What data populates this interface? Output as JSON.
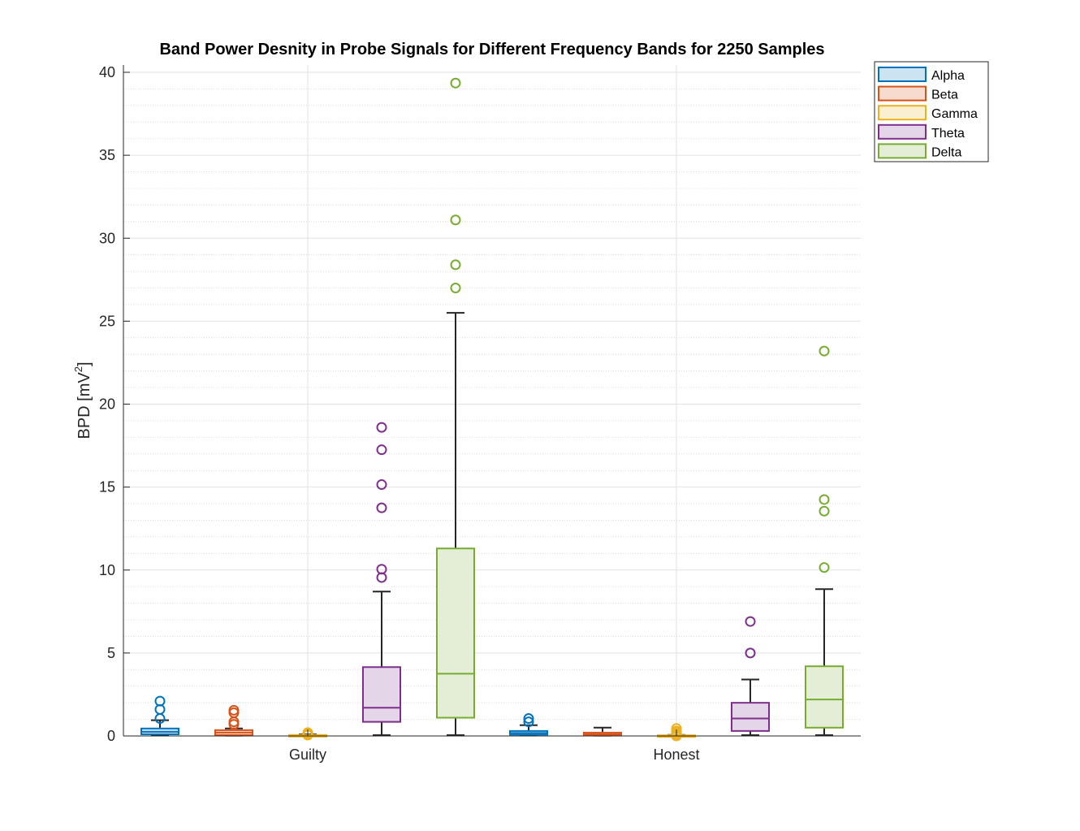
{
  "chart_data": {
    "type": "boxplot",
    "title": "Band Power Desnity in Probe Signals for Different Frequency Bands for 2250 Samples",
    "ylabel_main": "BPD [mV",
    "ylabel_sup": "2",
    "ylabel_close": "]",
    "xlabel": "",
    "ylim": [
      0,
      40
    ],
    "yticks": [
      "0",
      "5",
      "10",
      "15",
      "20",
      "25",
      "30",
      "35",
      "40"
    ],
    "minor_grid": true,
    "major_grid": true,
    "legend_position": "outside-top-right",
    "categories": [
      "Guilty",
      "Honest"
    ],
    "series": [
      {
        "name": "Alpha",
        "color": "#0072BD",
        "fill": "#cce3f2",
        "boxes": [
          {
            "min": 0.05,
            "q1": 0.1,
            "median": 0.25,
            "q3": 0.45,
            "max": 0.95,
            "outliers": [
              1.05,
              1.6,
              2.1
            ]
          },
          {
            "min": 0.05,
            "q1": 0.08,
            "median": 0.18,
            "q3": 0.3,
            "max": 0.65,
            "outliers": [
              0.85,
              1.05
            ]
          }
        ]
      },
      {
        "name": "Beta",
        "color": "#D95319",
        "fill": "#f7dbcf",
        "boxes": [
          {
            "min": 0.02,
            "q1": 0.05,
            "median": 0.2,
            "q3": 0.35,
            "max": 0.45,
            "outliers": [
              0.7,
              0.85,
              1.4,
              1.55
            ]
          },
          {
            "min": 0.02,
            "q1": 0.05,
            "median": 0.1,
            "q3": 0.2,
            "max": 0.5,
            "outliers": []
          }
        ]
      },
      {
        "name": "Gamma",
        "color": "#EDB120",
        "fill": "#fbefd2",
        "boxes": [
          {
            "min": 0.0,
            "q1": 0.02,
            "median": 0.04,
            "q3": 0.06,
            "max": 0.1,
            "outliers": [
              0.05,
              0.1,
              0.15,
              0.2
            ]
          },
          {
            "min": 0.0,
            "q1": 0.01,
            "median": 0.02,
            "q3": 0.04,
            "max": 0.06,
            "outliers": [
              0.0,
              0.1,
              0.2,
              0.3,
              0.45
            ]
          }
        ]
      },
      {
        "name": "Theta",
        "color": "#7E2F8E",
        "fill": "#e5d5e8",
        "boxes": [
          {
            "min": 0.05,
            "q1": 0.85,
            "median": 1.7,
            "q3": 4.15,
            "max": 8.7,
            "outliers": [
              9.55,
              10.05,
              13.75,
              15.15,
              17.25,
              18.6
            ]
          },
          {
            "min": 0.05,
            "q1": 0.3,
            "median": 1.05,
            "q3": 2.0,
            "max": 3.4,
            "outliers": [
              5.0,
              6.9
            ]
          }
        ]
      },
      {
        "name": "Delta",
        "color": "#77AC30",
        "fill": "#e4eed6",
        "boxes": [
          {
            "min": 0.05,
            "q1": 1.1,
            "median": 3.75,
            "q3": 11.3,
            "max": 25.5,
            "outliers": [
              27.0,
              28.4,
              31.1,
              39.35
            ]
          },
          {
            "min": 0.05,
            "q1": 0.5,
            "median": 2.2,
            "q3": 4.2,
            "max": 8.85,
            "outliers": [
              10.15,
              13.55,
              14.25,
              23.2
            ]
          }
        ]
      }
    ]
  }
}
